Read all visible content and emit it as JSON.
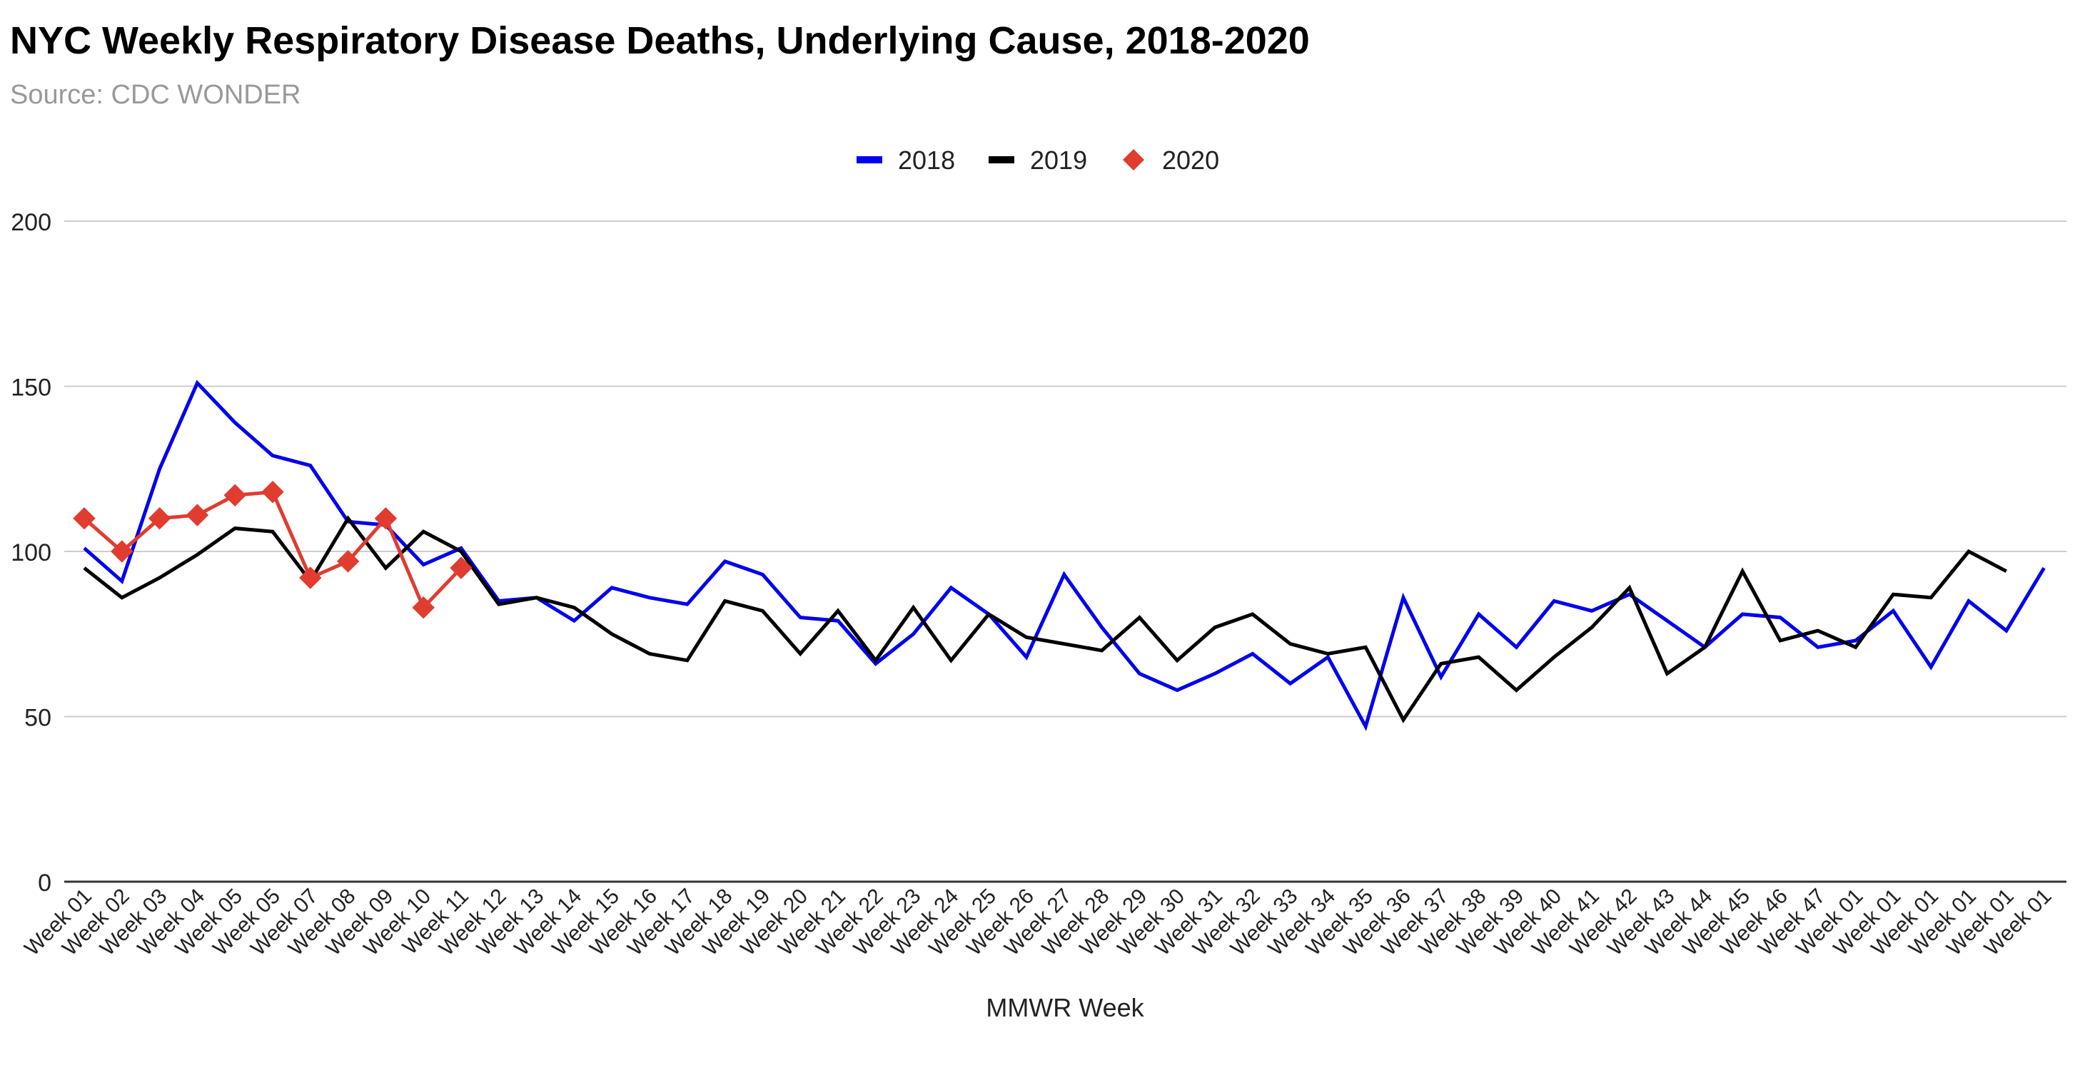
{
  "title": "NYC Weekly Respiratory Disease Deaths, Underlying Cause, 2018-2020",
  "subtitle": "Source: CDC WONDER",
  "chart_data": {
    "type": "line",
    "title": "NYC Weekly Respiratory Disease Deaths, Underlying Cause, 2018-2020",
    "subtitle": "Source: CDC WONDER",
    "xlabel": "MMWR Week",
    "ylabel": "",
    "ylim": [
      0,
      200
    ],
    "yticks": [
      0,
      50,
      100,
      150,
      200
    ],
    "grid": true,
    "legend_position": "top-center",
    "categories": [
      "Week 01",
      "Week 02",
      "Week 03",
      "Week 04",
      "Week 05",
      "Week 05",
      "Week 07",
      "Week 08",
      "Week 09",
      "Week 10",
      "Week 11",
      "Week 12",
      "Week 13",
      "Week 14",
      "Week 15",
      "Week 16",
      "Week 17",
      "Week 18",
      "Week 19",
      "Week 20",
      "Week 21",
      "Week 22",
      "Week 23",
      "Week 24",
      "Week 25",
      "Week 26",
      "Week 27",
      "Week 28",
      "Week 29",
      "Week 30",
      "Week 31",
      "Week 32",
      "Week 33",
      "Week 34",
      "Week 35",
      "Week 36",
      "Week 37",
      "Week 38",
      "Week 39",
      "Week 40",
      "Week 41",
      "Week 42",
      "Week 43",
      "Week 44",
      "Week 45",
      "Week 46",
      "Week 47",
      "Week 01",
      "Week 01",
      "Week 01",
      "Week 01",
      "Week 01",
      "Week 01"
    ],
    "series": [
      {
        "name": "2018",
        "color": "#0000ee",
        "marker": "none",
        "values": [
          101,
          91,
          125,
          151,
          139,
          129,
          126,
          109,
          108,
          96,
          101,
          85,
          86,
          79,
          89,
          86,
          84,
          97,
          93,
          80,
          79,
          66,
          75,
          89,
          81,
          68,
          93,
          77,
          63,
          58,
          63,
          69,
          60,
          68,
          47,
          86,
          62,
          81,
          71,
          85,
          82,
          87,
          79,
          71,
          81,
          80,
          71,
          73,
          82,
          65,
          85,
          76,
          95
        ]
      },
      {
        "name": "2019",
        "color": "#000000",
        "marker": "none",
        "values": [
          95,
          86,
          92,
          99,
          107,
          106,
          91,
          110,
          95,
          106,
          100,
          84,
          86,
          83,
          75,
          69,
          67,
          85,
          82,
          69,
          82,
          67,
          83,
          67,
          81,
          74,
          72,
          70,
          80,
          67,
          77,
          81,
          72,
          69,
          71,
          49,
          66,
          68,
          58,
          68,
          77,
          89,
          63,
          71,
          94,
          73,
          76,
          71,
          87,
          86,
          100,
          94,
          null
        ]
      },
      {
        "name": "2020",
        "color": "#e03c2f",
        "marker": "diamond",
        "values": [
          110,
          100,
          110,
          111,
          117,
          118,
          92,
          97,
          110,
          83,
          95,
          null,
          null,
          null,
          null,
          null,
          null,
          null,
          null,
          null,
          null,
          null,
          null,
          null,
          null,
          null,
          null,
          null,
          null,
          null,
          null,
          null,
          null,
          null,
          null,
          null,
          null,
          null,
          null,
          null,
          null,
          null,
          null,
          null,
          null,
          null,
          null,
          null,
          null,
          null,
          null,
          null,
          null
        ]
      }
    ]
  }
}
